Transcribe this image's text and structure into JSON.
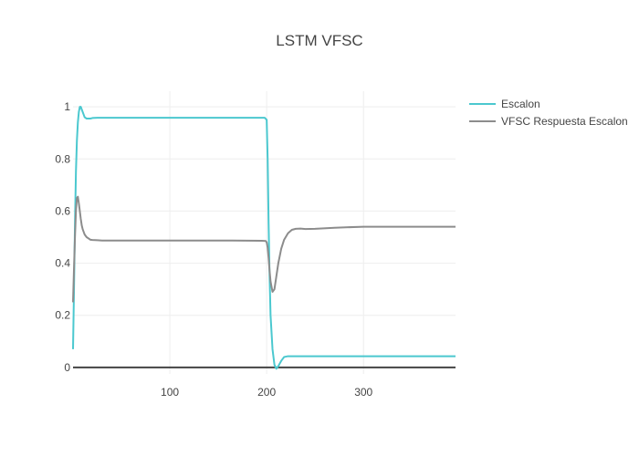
{
  "chart_data": {
    "type": "line",
    "title": "LSTM VFSC",
    "xlabel": "",
    "ylabel": "",
    "xlim": [
      0,
      395
    ],
    "ylim": [
      -0.025,
      1.06
    ],
    "x_ticks": [
      100,
      200,
      300
    ],
    "x_tick_labels": [
      "100",
      "200",
      "300"
    ],
    "y_ticks": [
      0,
      0.2,
      0.4,
      0.6,
      0.8,
      1
    ],
    "y_tick_labels": [
      "0",
      "0.2",
      "0.4",
      "0.6",
      "0.8",
      "1"
    ],
    "grid": true,
    "legend_position": "top-right",
    "series": [
      {
        "name": "Escalon",
        "color": "#4bc8cf",
        "x": [
          0,
          1,
          2,
          3,
          4,
          5,
          6,
          7,
          8,
          9,
          10,
          11,
          12,
          14,
          16,
          18,
          20,
          25,
          30,
          40,
          60,
          100,
          150,
          195,
          198,
          200,
          201,
          202,
          203,
          204,
          206,
          208,
          210,
          212,
          215,
          218,
          222,
          230,
          260,
          300,
          350,
          395
        ],
        "y": [
          0.07,
          0.3,
          0.55,
          0.75,
          0.87,
          0.94,
          0.98,
          1.0,
          1.0,
          0.99,
          0.98,
          0.97,
          0.96,
          0.955,
          0.955,
          0.955,
          0.957,
          0.958,
          0.958,
          0.958,
          0.958,
          0.958,
          0.958,
          0.958,
          0.958,
          0.95,
          0.8,
          0.55,
          0.35,
          0.2,
          0.07,
          0.01,
          -0.005,
          0.005,
          0.025,
          0.04,
          0.043,
          0.043,
          0.043,
          0.043,
          0.043,
          0.043
        ]
      },
      {
        "name": "VFSC Respuesta Escalon",
        "color": "#8c8c8c",
        "x": [
          0,
          1,
          2,
          3,
          4,
          5,
          6,
          7,
          8,
          9,
          10,
          11,
          12,
          14,
          16,
          18,
          20,
          25,
          30,
          40,
          60,
          100,
          150,
          195,
          199,
          200,
          201,
          202,
          203,
          204,
          206,
          208,
          210,
          212,
          215,
          218,
          222,
          226,
          230,
          235,
          240,
          250,
          270,
          300,
          350,
          395
        ],
        "y": [
          0.25,
          0.38,
          0.5,
          0.6,
          0.65,
          0.655,
          0.63,
          0.6,
          0.57,
          0.545,
          0.53,
          0.52,
          0.51,
          0.5,
          0.495,
          0.49,
          0.489,
          0.488,
          0.487,
          0.487,
          0.487,
          0.487,
          0.487,
          0.486,
          0.485,
          0.48,
          0.46,
          0.42,
          0.37,
          0.33,
          0.29,
          0.3,
          0.35,
          0.4,
          0.455,
          0.49,
          0.515,
          0.528,
          0.532,
          0.533,
          0.531,
          0.532,
          0.536,
          0.54,
          0.54,
          0.54
        ]
      }
    ]
  }
}
